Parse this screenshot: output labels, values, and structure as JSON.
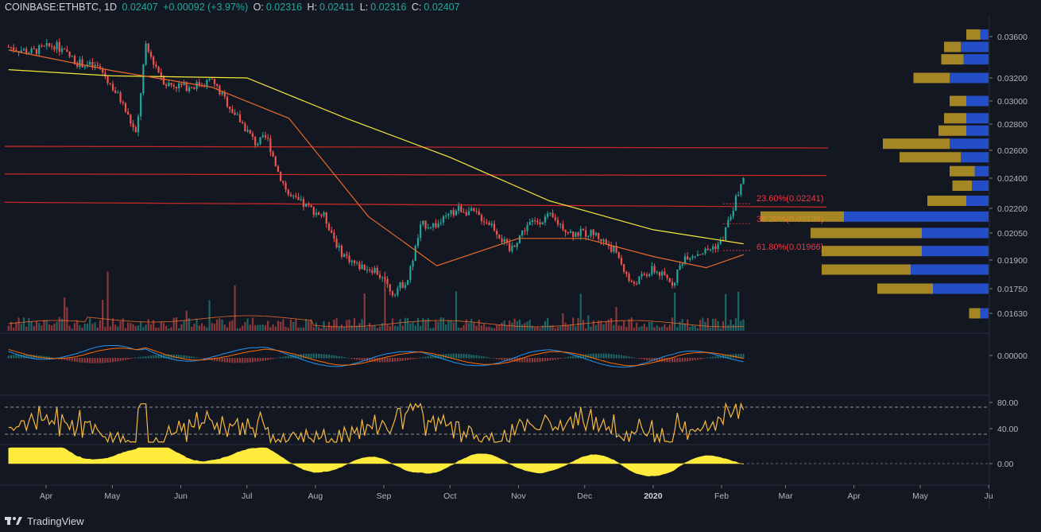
{
  "header": {
    "symbol": "COINBASE:ETHBTC, 1D",
    "price": "0.02407",
    "change": "+0.00092 (+3.97%)",
    "o_label": "O:",
    "o_value": "0.02316",
    "h_label": "H:",
    "h_value": "0.02411",
    "l_label": "L:",
    "l_value": "0.02316",
    "c_label": "C:",
    "c_value": "0.02407"
  },
  "footer": {
    "brand": "TradingView",
    "logo_icon": "tradingview-logo-icon"
  },
  "colors": {
    "background": "#131722",
    "up": "#26a69a",
    "down": "#ef5350",
    "ma_yellow": "#f5e83a",
    "ma_orange": "#e86a2a",
    "hline": "#c62828",
    "fib": "#f23645",
    "rsi": "#f5b843",
    "osc": "#ffeb3b",
    "macd_line": "#2196f3",
    "signal_line": "#ff6d00",
    "vp_blue": "#2962ff",
    "vp_gold": "#c9a227"
  },
  "chart_data": {
    "type": "candlestick",
    "title": "COINBASE:ETHBTC, 1D",
    "price_axis_ticks": [
      "0.03600",
      "0.03200",
      "0.03000",
      "0.02800",
      "0.02600",
      "0.02400",
      "0.02200",
      "0.02050",
      "0.01900",
      "0.01750",
      "0.01630"
    ],
    "time_axis_labels": [
      "Apr",
      "May",
      "Jun",
      "Jul",
      "Aug",
      "Sep",
      "Oct",
      "Nov",
      "Dec",
      "2020",
      "Feb",
      "Mar",
      "Apr",
      "May",
      "Ju"
    ],
    "macd_axis_ticks": [
      "0.00000"
    ],
    "rsi_axis_ticks": [
      "80.00",
      "40.00"
    ],
    "osc_axis_ticks": [
      "0.00"
    ],
    "fib_levels": [
      {
        "label": "23.60%(0.02241)",
        "value": 0.02241
      },
      {
        "label": "38.20%(0.02136)",
        "value": 0.02136
      },
      {
        "label": "61.80%(0.01966)",
        "value": 0.01966
      }
    ],
    "horizontal_lines": [
      0.0263,
      0.0243,
      0.0224
    ],
    "price_path": [
      [
        "2019-03-15",
        0.035
      ],
      [
        "2019-03-25",
        0.0345
      ],
      [
        "2019-04-05",
        0.0352
      ],
      [
        "2019-04-15",
        0.0335
      ],
      [
        "2019-04-25",
        0.033
      ],
      [
        "2019-05-05",
        0.03
      ],
      [
        "2019-05-12",
        0.027
      ],
      [
        "2019-05-16",
        0.035
      ],
      [
        "2019-05-25",
        0.0315
      ],
      [
        "2019-06-05",
        0.0312
      ],
      [
        "2019-06-15",
        0.0318
      ],
      [
        "2019-06-25",
        0.029
      ],
      [
        "2019-07-05",
        0.0265
      ],
      [
        "2019-07-10",
        0.027
      ],
      [
        "2019-07-15",
        0.0245
      ],
      [
        "2019-07-20",
        0.0228
      ],
      [
        "2019-07-27",
        0.0222
      ],
      [
        "2019-08-05",
        0.0215
      ],
      [
        "2019-08-12",
        0.0195
      ],
      [
        "2019-08-20",
        0.0187
      ],
      [
        "2019-08-28",
        0.0185
      ],
      [
        "2019-09-05",
        0.0173
      ],
      [
        "2019-09-12",
        0.018
      ],
      [
        "2019-09-18",
        0.021
      ],
      [
        "2019-09-25",
        0.021
      ],
      [
        "2019-10-05",
        0.022
      ],
      [
        "2019-10-12",
        0.0217
      ],
      [
        "2019-10-20",
        0.021
      ],
      [
        "2019-10-28",
        0.0195
      ],
      [
        "2019-11-05",
        0.021
      ],
      [
        "2019-11-15",
        0.0215
      ],
      [
        "2019-11-25",
        0.0205
      ],
      [
        "2019-12-05",
        0.0205
      ],
      [
        "2019-12-15",
        0.0195
      ],
      [
        "2019-12-22",
        0.0177
      ],
      [
        "2020-01-01",
        0.0185
      ],
      [
        "2020-01-10",
        0.0178
      ],
      [
        "2020-01-15",
        0.0192
      ],
      [
        "2020-01-25",
        0.0195
      ],
      [
        "2020-02-01",
        0.02
      ],
      [
        "2020-02-05",
        0.0215
      ],
      [
        "2020-02-11",
        0.02407
      ]
    ],
    "ma_long": [
      [
        "2019-03-15",
        0.0328
      ],
      [
        "2019-05-01",
        0.0322
      ],
      [
        "2019-07-01",
        0.032
      ],
      [
        "2019-08-15",
        0.0285
      ],
      [
        "2019-10-01",
        0.0255
      ],
      [
        "2019-11-15",
        0.0225
      ],
      [
        "2020-01-01",
        0.0207
      ],
      [
        "2020-02-11",
        0.0199
      ]
    ],
    "ma_short": [
      [
        "2019-03-15",
        0.0347
      ],
      [
        "2019-05-01",
        0.0327
      ],
      [
        "2019-06-15",
        0.0312
      ],
      [
        "2019-07-20",
        0.0285
      ],
      [
        "2019-08-25",
        0.0215
      ],
      [
        "2019-09-25",
        0.0187
      ],
      [
        "2019-11-01",
        0.0202
      ],
      [
        "2019-12-01",
        0.0202
      ],
      [
        "2020-01-01",
        0.0192
      ],
      [
        "2020-01-25",
        0.0186
      ],
      [
        "2020-02-11",
        0.0193
      ]
    ],
    "volume_profile": [
      {
        "price": 0.0362,
        "buy": 0.25,
        "sell": 0.15
      },
      {
        "price": 0.035,
        "buy": 0.3,
        "sell": 0.5
      },
      {
        "price": 0.0338,
        "buy": 0.4,
        "sell": 0.45
      },
      {
        "price": 0.032,
        "buy": 0.65,
        "sell": 0.7
      },
      {
        "price": 0.03,
        "buy": 0.3,
        "sell": 0.4
      },
      {
        "price": 0.0285,
        "buy": 0.4,
        "sell": 0.4
      },
      {
        "price": 0.0275,
        "buy": 0.5,
        "sell": 0.4
      },
      {
        "price": 0.0265,
        "buy": 1.2,
        "sell": 0.7
      },
      {
        "price": 0.0255,
        "buy": 1.1,
        "sell": 0.5
      },
      {
        "price": 0.0245,
        "buy": 0.45,
        "sell": 0.25
      },
      {
        "price": 0.0235,
        "buy": 0.35,
        "sell": 0.3
      },
      {
        "price": 0.0225,
        "buy": 0.7,
        "sell": 0.4
      },
      {
        "price": 0.0215,
        "buy": 1.5,
        "sell": 2.6
      },
      {
        "price": 0.0205,
        "buy": 2.0,
        "sell": 1.2
      },
      {
        "price": 0.0195,
        "buy": 1.8,
        "sell": 1.2
      },
      {
        "price": 0.0185,
        "buy": 1.6,
        "sell": 1.4
      },
      {
        "price": 0.0175,
        "buy": 1.0,
        "sell": 1.0
      },
      {
        "price": 0.0163,
        "buy": 0.2,
        "sell": 0.15
      }
    ]
  }
}
